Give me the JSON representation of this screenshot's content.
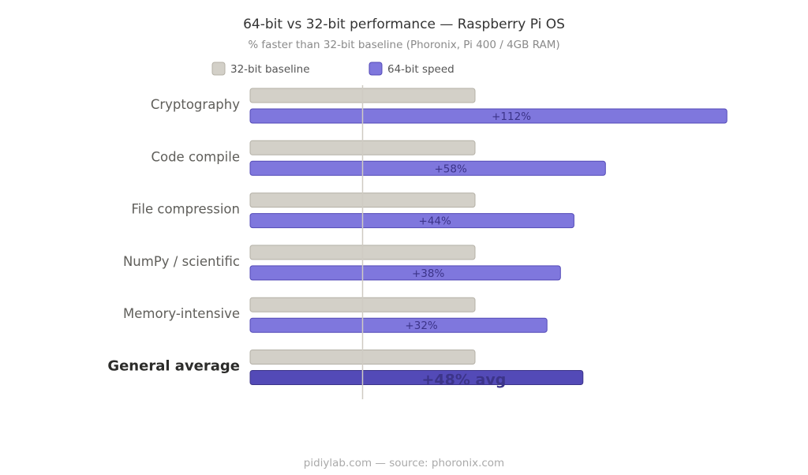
{
  "chart_data": {
    "type": "bar",
    "orientation": "horizontal",
    "title": "64-bit vs 32-bit performance — Raspberry Pi OS",
    "subtitle": "% faster than 32-bit baseline (Phoronix, Pi 400 / 4GB RAM)",
    "footer": "pidiylab.com  —  source: phoronix.com",
    "categories": [
      "Cryptography",
      "Code compile",
      "File compression",
      "NumPy / scientific",
      "Memory-intensive",
      "General average"
    ],
    "series": [
      {
        "name": "32-bit baseline",
        "values": [
          100,
          100,
          100,
          100,
          100,
          100
        ],
        "color": "#d3d0c8"
      },
      {
        "name": "64-bit speed",
        "values": [
          212,
          158,
          144,
          138,
          132,
          148
        ],
        "color": "#7f77dd"
      }
    ],
    "data_labels": [
      "+112%",
      "+58%",
      "+44%",
      "+38%",
      "+32%",
      "+48% avg"
    ],
    "highlight_category": "General average",
    "highlight_color": "#534ab7",
    "reference_line": 50,
    "legend_placement": "top",
    "grid": false,
    "xlim": [
      0,
      250
    ]
  }
}
